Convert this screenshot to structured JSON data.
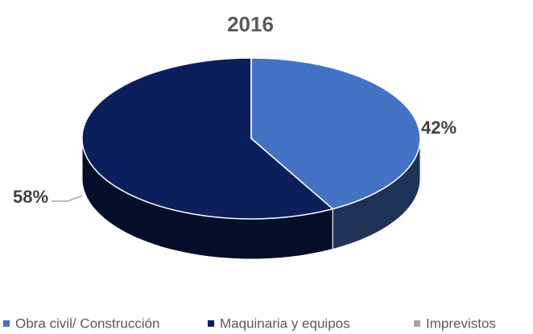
{
  "chart_data": {
    "type": "pie",
    "title": "2016",
    "categories": [
      "Obra civil/ Construcción",
      "Maquinaria y equipos",
      "Imprevistos"
    ],
    "values": [
      42,
      58,
      0
    ],
    "value_labels": [
      "42%",
      "58%",
      null
    ],
    "colors": [
      "#4472c4",
      "#0b1f5c",
      "#a5a5a5"
    ],
    "legend": "bottom"
  }
}
